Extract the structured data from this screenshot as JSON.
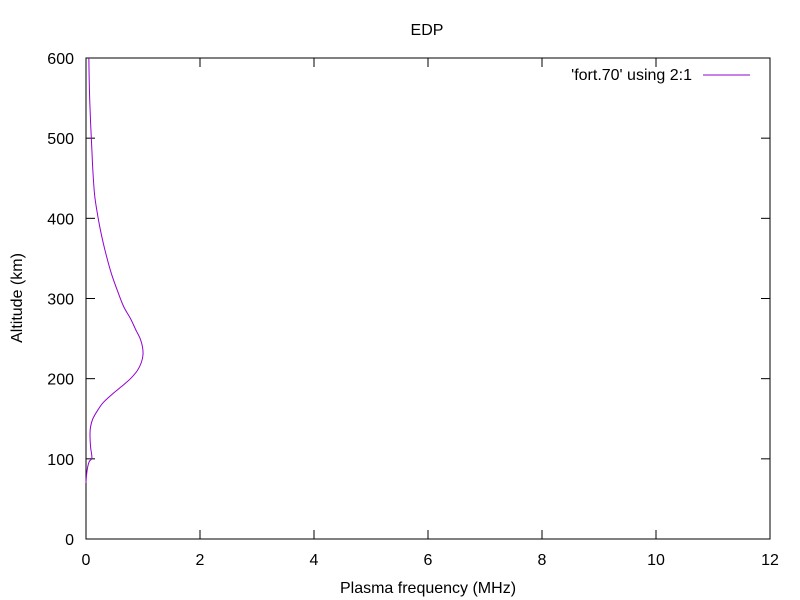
{
  "chart_data": {
    "type": "line",
    "title": "EDP",
    "xlabel": "Plasma frequency (MHz)",
    "ylabel": "Altitude (km)",
    "xlim": [
      0,
      12
    ],
    "ylim": [
      0,
      600
    ],
    "xticks": [
      0,
      2,
      4,
      6,
      8,
      10,
      12
    ],
    "yticks": [
      0,
      100,
      200,
      300,
      400,
      500,
      600
    ],
    "grid": false,
    "legend_position": "top-right",
    "series": [
      {
        "name": "'fort.70' using 2:1",
        "color": "#9400d3",
        "x": [
          0.0,
          0.01,
          0.03,
          0.06,
          0.1,
          0.1,
          0.08,
          0.07,
          0.08,
          0.12,
          0.2,
          0.3,
          0.45,
          0.62,
          0.78,
          0.9,
          0.97,
          1.0,
          0.99,
          0.95,
          0.88,
          0.78,
          0.66,
          0.55,
          0.45,
          0.37,
          0.3,
          0.24,
          0.19,
          0.15,
          0.12,
          0.1,
          0.08,
          0.06,
          0.05
        ],
        "y": [
          70,
          80,
          90,
          97,
          100,
          105,
          115,
          130,
          140,
          150,
          160,
          170,
          180,
          190,
          200,
          210,
          220,
          230,
          240,
          250,
          260,
          275,
          290,
          310,
          330,
          350,
          370,
          390,
          410,
          430,
          460,
          490,
          520,
          560,
          600
        ]
      }
    ]
  }
}
